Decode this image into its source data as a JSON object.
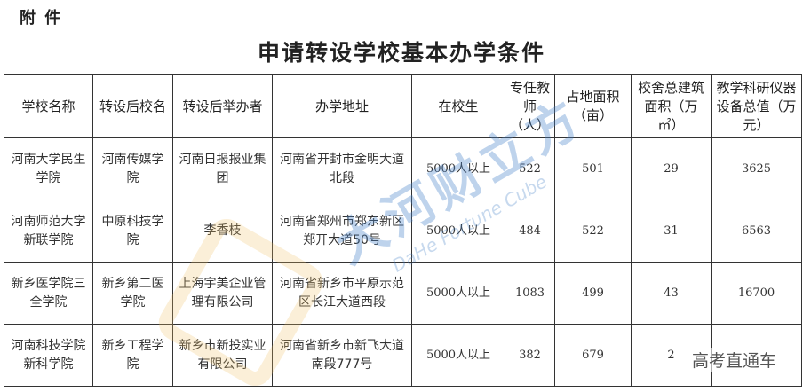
{
  "annex_label": "附  件",
  "title": "申请转设学校基本办学条件",
  "table": {
    "headers": [
      "学校名称",
      "转设后校名",
      "转设后举办者",
      "办学地址",
      "在校生",
      "专任教师（人）",
      "占地面积（亩）",
      "校舍总建筑面积（万㎡）",
      "教学科研仪器设备总值（万元）"
    ],
    "rows": [
      [
        "河南大学民生学院",
        "河南传媒学院",
        "河南日报报业集团",
        "河南省开封市金明大道北段",
        "5000人以上",
        "522",
        "501",
        "29",
        "3625"
      ],
      [
        "河南师范大学新联学院",
        "中原科技学院",
        "李香枝",
        "河南省郑州市郑东新区郑开大道50号",
        "5000人以上",
        "484",
        "522",
        "31",
        "6563"
      ],
      [
        "新乡医学院三全学院",
        "新乡第二医学院",
        "上海宇美企业管理有限公司",
        "河南省新乡市平原示范区长江大道西段",
        "5000人以上",
        "1083",
        "499",
        "43",
        "16700"
      ],
      [
        "河南科技学院新科学院",
        "新乡工程学院",
        "新乡市新投实业有限公司",
        "河南省新乡市新飞大道南段777号",
        "5000人以上",
        "382",
        "679",
        "2",
        ""
      ]
    ]
  },
  "watermarks": {
    "logo_text": "大河财立方",
    "logo_sub": "DaHe Fortune Cube",
    "corner": "高考直通车"
  }
}
